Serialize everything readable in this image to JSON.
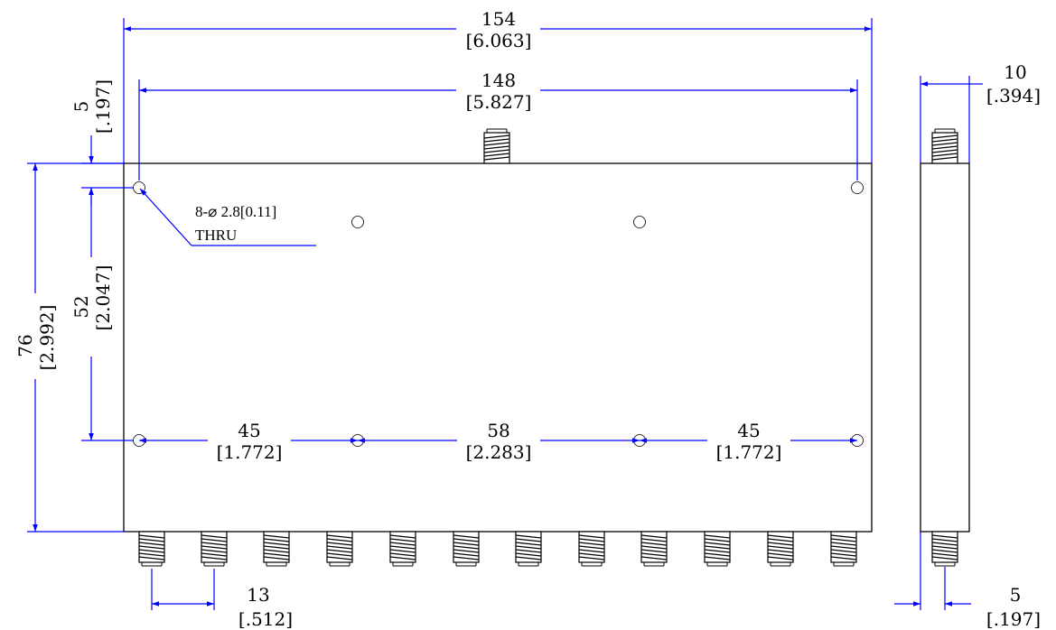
{
  "colors": {
    "dimension_line": "#0000ff",
    "outline": "#000000",
    "background": "#ffffff"
  },
  "dimensions": {
    "overall_width": {
      "mm": "154",
      "inch": "[6.063]"
    },
    "hole_span": {
      "mm": "148",
      "inch": "[5.827]"
    },
    "hole_offset_top": {
      "mm": "5",
      "inch": "[.197]"
    },
    "hole_vertical_span": {
      "mm": "52",
      "inch": "[2.047]"
    },
    "overall_height": {
      "mm": "76",
      "inch": "[2.992]"
    },
    "hole_pitch_left": {
      "mm": "45",
      "inch": "[1.772]"
    },
    "hole_pitch_center": {
      "mm": "58",
      "inch": "[2.283]"
    },
    "hole_pitch_right": {
      "mm": "45",
      "inch": "[1.772]"
    },
    "connector_pitch": {
      "mm": "13",
      "inch": "[.512]"
    },
    "side_thickness": {
      "mm": "10",
      "inch": "[.394]"
    },
    "side_connector_offset": {
      "mm": "5",
      "inch": "[.197]"
    }
  },
  "callout": {
    "line1": "8-⌀ 2.8[0.11]",
    "line2": "THRU"
  },
  "features": {
    "mounting_holes": 8,
    "bottom_connectors": 12,
    "top_connectors": 1
  }
}
